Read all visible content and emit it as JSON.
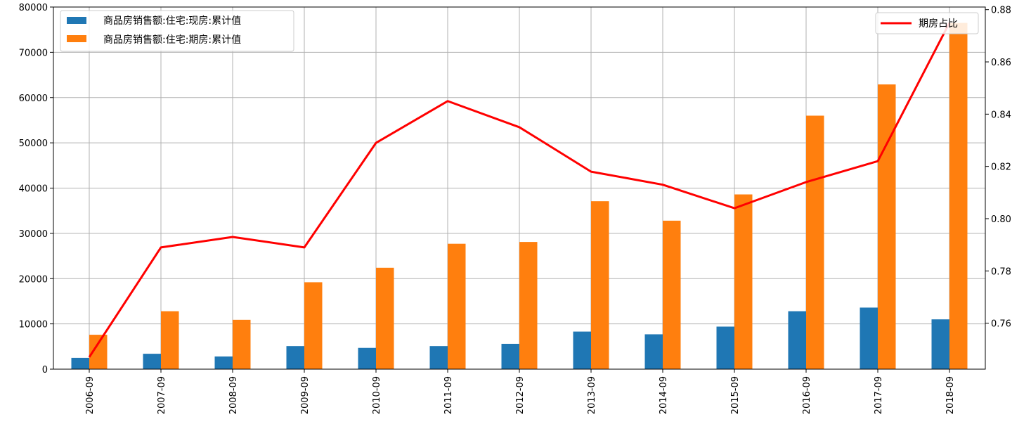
{
  "chart_data": {
    "type": "bar",
    "categories": [
      "2006-09",
      "2007-09",
      "2008-09",
      "2009-09",
      "2010-09",
      "2011-09",
      "2012-09",
      "2013-09",
      "2014-09",
      "2015-09",
      "2016-09",
      "2017-09",
      "2018-09"
    ],
    "series": [
      {
        "name": "商品房销售额:住宅:现房:累计值",
        "color": "#1f77b4",
        "axis": "left",
        "values": [
          2500,
          3400,
          2800,
          5100,
          4700,
          5100,
          5600,
          8300,
          7700,
          9400,
          12800,
          13600,
          11000
        ]
      },
      {
        "name": "商品房销售额:住宅:期房:累计值",
        "color": "#ff7f0e",
        "axis": "left",
        "values": [
          7600,
          12800,
          10900,
          19200,
          22400,
          27700,
          28100,
          37100,
          32800,
          38600,
          56000,
          62900,
          76500
        ]
      },
      {
        "name": "期房占比",
        "color": "#ff0000",
        "axis": "right",
        "type": "line",
        "values": [
          0.747,
          0.789,
          0.793,
          0.789,
          0.829,
          0.845,
          0.835,
          0.818,
          0.813,
          0.804,
          0.814,
          0.822,
          0.875
        ]
      }
    ],
    "left_axis": {
      "ylim": [
        0,
        80000
      ],
      "ticks": [
        "0",
        "10000",
        "20000",
        "30000",
        "40000",
        "50000",
        "60000",
        "70000",
        "80000"
      ]
    },
    "right_axis": {
      "ylim": [
        0.7424,
        0.881
      ],
      "ticks": [
        "0.76",
        "0.78",
        "0.80",
        "0.82",
        "0.84",
        "0.86",
        "0.88"
      ]
    },
    "grid": true,
    "legend_left_position": "top-left",
    "legend_right_position": "top-right",
    "title": "",
    "xlabel": "",
    "ylabel": ""
  }
}
